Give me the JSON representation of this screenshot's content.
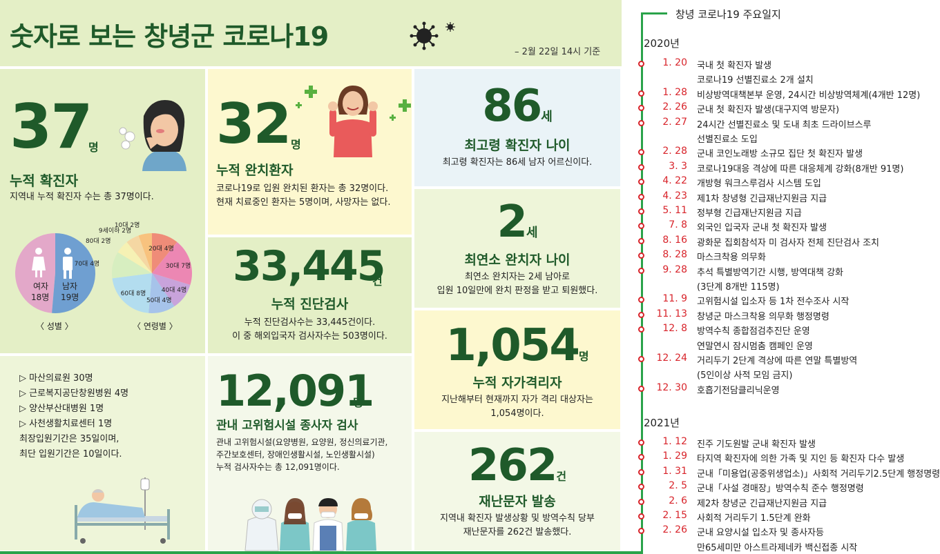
{
  "header": {
    "title": "숫자로 보는 창녕군 코로나19",
    "date_note": "– 2월 22일 14시 기준"
  },
  "cumulative": {
    "number": "37",
    "unit": "명",
    "title": "누적 확진자",
    "desc": "지역내 누적 확진자 수는 총 37명이다."
  },
  "gender": {
    "female_label": "여자",
    "female_count": "18명",
    "male_label": "남자",
    "male_count": "19명",
    "caption": "〈 성별 〉",
    "female_value": 18,
    "male_value": 19,
    "female_color": "#e3a8c9",
    "male_color": "#6f9fd1"
  },
  "age": {
    "caption": "〈 연령별 〉",
    "slices": [
      {
        "label": "20대 4명",
        "value": 4,
        "color": "#ef8c78"
      },
      {
        "label": "30대 7명",
        "value": 7,
        "color": "#ec87b3"
      },
      {
        "label": "40대 4명",
        "value": 4,
        "color": "#c8a3db"
      },
      {
        "label": "50대 4명",
        "value": 4,
        "color": "#a6c3ea"
      },
      {
        "label": "60대 8명",
        "value": 8,
        "color": "#b3ddef"
      },
      {
        "label": "70대 4명",
        "value": 4,
        "color": "#d7eec0"
      },
      {
        "label": "80대 2명",
        "value": 2,
        "color": "#f6f1b4"
      },
      {
        "label": "9세이하 2명",
        "value": 2,
        "color": "#f5d7a3"
      },
      {
        "label": "10대 2명",
        "value": 2,
        "color": "#f8c27e"
      }
    ]
  },
  "recovered": {
    "number": "32",
    "unit": "명",
    "title": "누적 완치환자",
    "desc1": "코로나19로 입원 완치된 환자는 총 32명이다.",
    "desc2": "현재 치료중인 환자는 5명이며, 사망자는 없다."
  },
  "oldest": {
    "number": "86",
    "unit": "세",
    "title": "최고령 확진자 나이",
    "desc": "최고령 확진자는  86세 남자 어르신이다."
  },
  "youngest": {
    "number": "2",
    "unit": "세",
    "title": "최연소 완치자 나이",
    "desc1": "최연소 완치자는  2세 남아로",
    "desc2": "입원 10일만에 완치 판정을 받고 퇴원했다."
  },
  "tests": {
    "number": "33,445",
    "unit": "건",
    "title": "누적 진단검사",
    "desc1": "누적 진단검사수는  33,445건이다.",
    "desc2": "이 중 해외입국자 검사자수는 503명이다."
  },
  "hospitals": {
    "items": [
      "▷ 마산의료원 30명",
      "▷ 근로복지공단창원병원 4명",
      "▷ 양산부산대병원 1명",
      "▷ 사천생활치료센터 1명"
    ],
    "note1": "최장입원기간은 35일이며,",
    "note2": "최단 입원기간은  10일이다."
  },
  "facility": {
    "number": "12,091",
    "unit": "명",
    "title": "관내 고위험시설 종사자 검사",
    "desc1": "관내 고위험시설(요양병원, 요양원, 정신의료기관,",
    "desc2": "주간보호센터, 장애인생활시설, 노인생활시설)",
    "desc3": "누적 검사자수는 총 12,091명이다."
  },
  "quarantine": {
    "number": "1,054",
    "unit": "명",
    "title": "누적 자가격리자",
    "desc1": "지난해부터 현재까지 자가 격리 대상자는",
    "desc2": "1,054명이다."
  },
  "sms": {
    "number": "262",
    "unit": "건",
    "title": "재난문자 발송",
    "desc1": "지역내 확진자 발생상황 및 방역수칙 당부",
    "desc2": "재난문자를 262건 발송했다."
  },
  "timeline": {
    "title": "창녕 코로나19 주요일지",
    "year2020": "2020년",
    "events2020": [
      {
        "date": "1. 20",
        "text": "국내 첫 확진자 발생",
        "cont": "코로나19 선별진료소 2개 설치"
      },
      {
        "date": "1. 28",
        "text": "비상방역대책본부 운영, 24시간 비상방역체계(4개반 12명)"
      },
      {
        "date": "2. 26",
        "text": "군내 첫 확진자 발생(대구지역 방문자)"
      },
      {
        "date": "2. 27",
        "text": "24시간 선별진료소 및 도내 최초 드라이브스루",
        "cont": "선별진료소 도입"
      },
      {
        "date": "2. 28",
        "text": "군내 코인노래방 소규모 집단 첫 확진자 발생"
      },
      {
        "date": "3.   3",
        "text": "코로나19대응 격상에 따른 대응체계 강화(8개반 91명)"
      },
      {
        "date": "4. 22",
        "text": "개방형 워크스루검사 시스템 도입"
      },
      {
        "date": "4. 23",
        "text": "제1차 창녕형 긴급재난지원금 지급"
      },
      {
        "date": "5. 11",
        "text": "정부형 긴급재난지원금 지급"
      },
      {
        "date": "7.   8",
        "text": "외국인 입국자 군내 첫 확진자 발생"
      },
      {
        "date": "8. 16",
        "text": "광화문 집회참석자 미 검사자 전체 진단검사 조치"
      },
      {
        "date": "8. 28",
        "text": "마스크착용 의무화"
      },
      {
        "date": "9. 28",
        "text": "추석 특별방역기간 시행, 방역대책 강화",
        "cont": "(3단계 8개반 115명)"
      },
      {
        "date": "11.   9",
        "text": "고위험시설 입소자 등 1차 전수조사 시작"
      },
      {
        "date": "11. 13",
        "text": "창녕군 마스크착용 의무화 행정명령"
      },
      {
        "date": "12.   8",
        "text": "방역수칙 종합점검추진단 운영",
        "cont": "연말연시 잠시멈춤 캠페인 운영"
      },
      {
        "date": "12. 24",
        "text": "거리두기 2단계 격상에 따른 연말 특별방역",
        "cont": "(5인이상 사적 모임 금지)"
      },
      {
        "date": "12. 30",
        "text": "호흡기전담클리닉운영"
      }
    ],
    "year2021": "2021년",
    "events2021": [
      {
        "date": "1. 12",
        "text": "진주 기도원발 군내 확진자 발생"
      },
      {
        "date": "1. 29",
        "text": "타지역 확진자에 의한 가족 및 지인 등 확진자 다수 발생"
      },
      {
        "date": "1. 31",
        "text": "군내「미용업(공중위생업소)」사회적 거리두기2.5단계 행정명령"
      },
      {
        "date": "2.   5",
        "text": "군내「사설 경매장」방역수칙 준수 행정명령"
      },
      {
        "date": "2.   6",
        "text": "제2차 창녕군 긴급재난지원금 지급"
      },
      {
        "date": "2. 15",
        "text": "사회적 거리두기 1.5단계 완화"
      },
      {
        "date": "2. 26",
        "text": "군내 요양시설 입소자 및 종사자등",
        "cont": "만65세미만 아스트라제네카 백신접종 시작"
      }
    ]
  }
}
